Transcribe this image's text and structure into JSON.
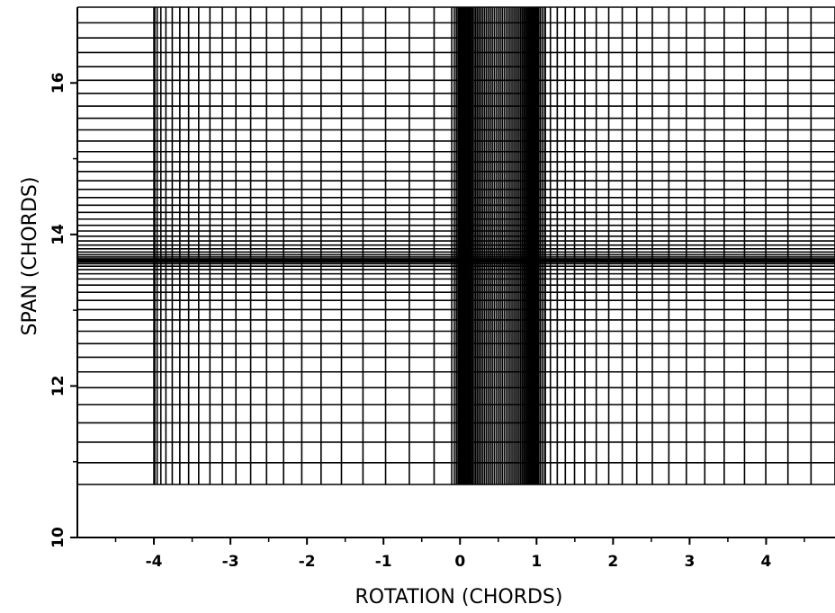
{
  "chart_data": {
    "type": "grid",
    "title": "",
    "xlabel": "ROTATION (CHORDS)",
    "ylabel": "SPAN (CHORDS)",
    "xlim": [
      -5.0,
      4.9
    ],
    "ylim": [
      10.0,
      17.0
    ],
    "x_ticks": [
      -4,
      -3,
      -2,
      -1,
      0,
      1,
      2,
      3,
      4
    ],
    "x_tick_labels": [
      "-4",
      "-3",
      "-2",
      "-1",
      "0",
      "1",
      "2",
      "3",
      "4"
    ],
    "y_ticks": [
      10,
      12,
      14,
      16
    ],
    "y_tick_labels": [
      "10",
      "12",
      "14",
      "16"
    ],
    "mesh": {
      "x_min": -4.0,
      "x_max": 4.9,
      "y_min": 10.7,
      "y_max": 17.0,
      "leading_edge_x": 0.0,
      "trailing_edge_x": 1.0,
      "tip_span_y": 13.65
    },
    "grid": true,
    "legend": "none"
  },
  "colors": {
    "line": "#000000",
    "background": "#ffffff"
  }
}
